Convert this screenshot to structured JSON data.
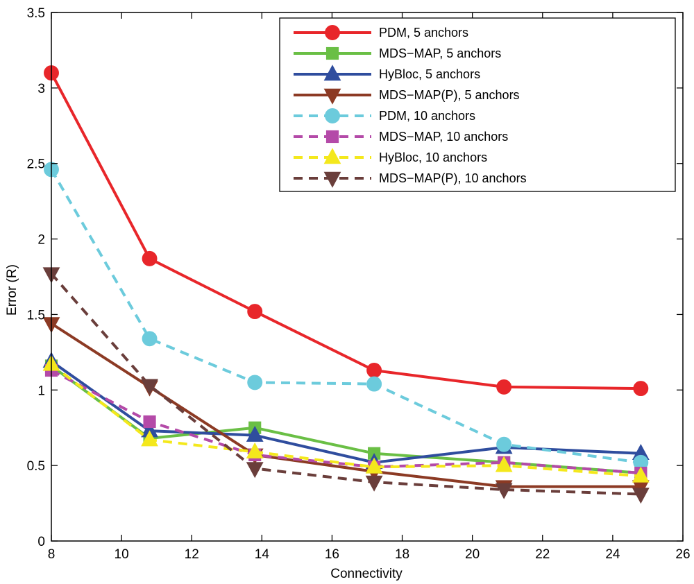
{
  "chart_data": {
    "type": "line",
    "title": "",
    "xlabel": "Connectivity",
    "ylabel": "Error (R)",
    "xlim": [
      8,
      26
    ],
    "ylim": [
      0,
      3.5
    ],
    "xticks": [
      "8",
      "10",
      "12",
      "14",
      "16",
      "18",
      "20",
      "22",
      "24",
      "26"
    ],
    "yticks": [
      "0",
      "0.5",
      "1",
      "1.5",
      "2",
      "2.5",
      "3",
      "3.5"
    ],
    "legend_position": "top-right",
    "x": [
      8,
      10.8,
      13.8,
      17.2,
      20.9,
      24.8
    ],
    "series": [
      {
        "name": "PDM, 5 anchors",
        "color": "#e8262a",
        "dash": "solid",
        "marker": "circle",
        "values": [
          3.1,
          1.87,
          1.52,
          1.13,
          1.02,
          1.01
        ]
      },
      {
        "name": "MDS−MAP, 5 anchors",
        "color": "#6abf45",
        "dash": "solid",
        "marker": "square",
        "values": [
          1.16,
          0.68,
          0.75,
          0.58,
          0.52,
          0.45
        ]
      },
      {
        "name": "HyBloc, 5 anchors",
        "color": "#2f4d9e",
        "dash": "solid",
        "marker": "triangle-up",
        "values": [
          1.19,
          0.73,
          0.7,
          0.52,
          0.62,
          0.58
        ]
      },
      {
        "name": "MDS−MAP(P), 5 anchors",
        "color": "#8c3a24",
        "dash": "solid",
        "marker": "triangle-down",
        "values": [
          1.44,
          1.02,
          0.57,
          0.46,
          0.36,
          0.36
        ]
      },
      {
        "name": "PDM, 10 anchors",
        "color": "#6ccbdc",
        "dash": "dashed",
        "marker": "circle",
        "values": [
          2.46,
          1.34,
          1.05,
          1.04,
          0.64,
          0.52
        ]
      },
      {
        "name": "MDS−MAP, 10 anchors",
        "color": "#b44aa8",
        "dash": "dashed",
        "marker": "square",
        "values": [
          1.13,
          0.79,
          0.57,
          0.49,
          0.52,
          0.45
        ]
      },
      {
        "name": "HyBloc, 10 anchors",
        "color": "#f4e81c",
        "dash": "dashed",
        "marker": "triangle-up",
        "values": [
          1.17,
          0.67,
          0.59,
          0.49,
          0.5,
          0.43
        ]
      },
      {
        "name": "MDS−MAP(P), 10 anchors",
        "color": "#6a3e3b",
        "dash": "dashed",
        "marker": "triangle-down",
        "values": [
          1.77,
          1.03,
          0.48,
          0.39,
          0.34,
          0.31
        ]
      }
    ]
  }
}
